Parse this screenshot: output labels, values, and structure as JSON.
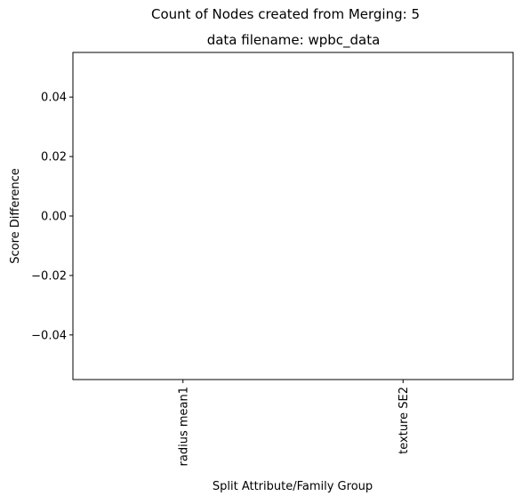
{
  "chart_data": {
    "type": "bar",
    "suptitle": "Count of Nodes created from Merging: 5",
    "title": "data filename: wpbc_data",
    "xlabel": "Split Attribute/Family Group",
    "ylabel": "Score Difference",
    "categories": [
      "radius mean1",
      "texture SE2"
    ],
    "values": [
      0,
      0
    ],
    "ylim": [
      -0.055,
      0.055
    ],
    "yticks": [
      0.04,
      0.02,
      0.0,
      -0.02,
      -0.04
    ],
    "ytick_labels": [
      "0.04",
      "0.02",
      "0.00",
      "−0.02",
      "−0.04"
    ],
    "grid": false,
    "legend": "none",
    "bar_color": "#1f77b4"
  }
}
